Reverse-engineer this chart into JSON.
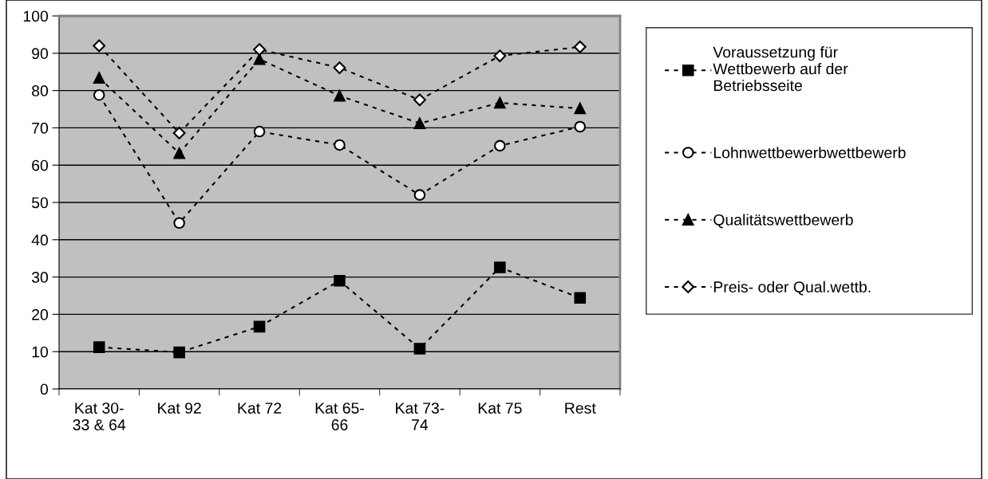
{
  "chart_data": {
    "type": "line",
    "categories": [
      "Kat 30-\n33 & 64",
      "Kat 92",
      "Kat 72",
      "Kat 65-\n66",
      "Kat 73-\n74",
      "Kat 75",
      "Rest"
    ],
    "series": [
      {
        "name": "Voraussetzung für\nWettbewerb auf der\nBetriebsseite",
        "color": "#000000",
        "marker": "square",
        "values": [
          11.2,
          9.8,
          16.7,
          29.0,
          10.8,
          32.6,
          24.4
        ]
      },
      {
        "name": "Lohnwettbewerbwettbewerb",
        "color": "#000000",
        "marker": "circle",
        "values": [
          78.8,
          44.5,
          69.0,
          65.4,
          52.0,
          65.2,
          70.3
        ]
      },
      {
        "name": "Qualitätswettbewerb",
        "color": "#000000",
        "marker": "triangle",
        "values": [
          83.4,
          63.2,
          88.4,
          78.6,
          71.2,
          76.7,
          75.2
        ]
      },
      {
        "name": "Preis- oder Qual.wettb.",
        "color": "#000000",
        "marker": "diamond",
        "values": [
          92.0,
          68.6,
          91.0,
          86.1,
          77.5,
          89.3,
          91.7
        ]
      }
    ],
    "ylim": [
      0,
      100
    ],
    "yticks": [
      0,
      10,
      20,
      30,
      40,
      50,
      60,
      70,
      80,
      90,
      100
    ],
    "grid": "y",
    "legend": "right",
    "line_style": "dashed"
  }
}
